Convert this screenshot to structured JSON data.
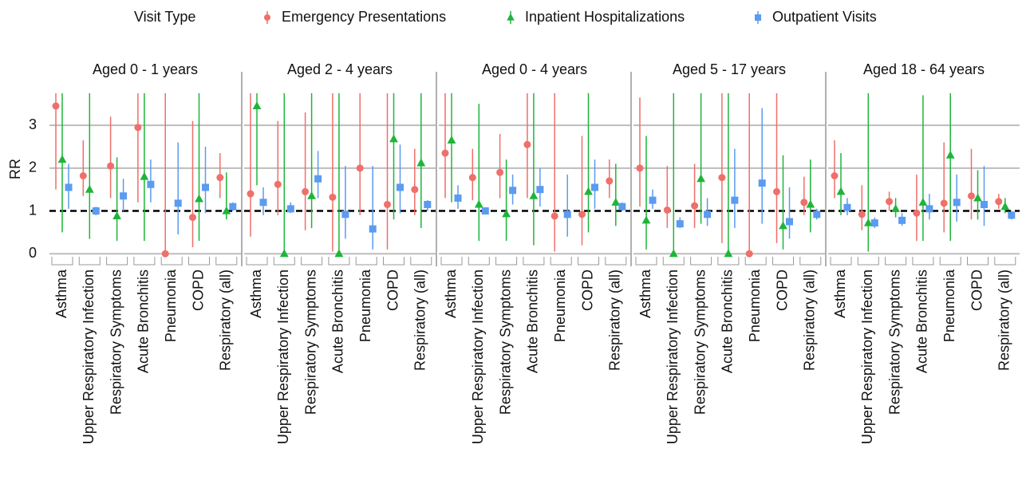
{
  "chart_data": {
    "type": "errorbar",
    "legend_title": "Visit Type",
    "ylabel": "RR",
    "ylim": [
      -0.07,
      4.25
    ],
    "yticks": [
      0,
      1,
      2,
      3
    ],
    "grid": true,
    "reference_line": 1,
    "legend": [
      {
        "name": "Emergency Presentations",
        "color": "#ef6f6a",
        "marker": "circle"
      },
      {
        "name": "Inpatient Hospitalizations",
        "color": "#1eb53a",
        "marker": "triangle"
      },
      {
        "name": "Outpatient Visits",
        "color": "#5b9bf0",
        "marker": "square"
      }
    ],
    "categories": [
      "Asthma",
      "Upper Respiratory Infection",
      "Respiratory Symptoms",
      "Acute Bronchitis",
      "Pneumonia",
      "COPD",
      "Respiratory (all)"
    ],
    "panels": [
      {
        "title": "Aged 0 - 1 years",
        "series": [
          {
            "values": [
              3.45,
              1.82,
              2.05,
              2.95,
              0,
              0.85,
              1.78
            ],
            "lower": [
              1.5,
              1.35,
              1.3,
              1.2,
              0,
              0.15,
              1.3
            ],
            "upper": [
              3.75,
              2.65,
              3.2,
              3.75,
              3.75,
              3.1,
              2.35
            ]
          },
          {
            "values": [
              2.2,
              1.5,
              0.88,
              1.8,
              null,
              1.28,
              1.0
            ],
            "lower": [
              0.5,
              0.35,
              0.3,
              0.3,
              null,
              0.3,
              0.8
            ],
            "upper": [
              3.75,
              3.75,
              2.25,
              3.75,
              null,
              3.75,
              1.9
            ]
          },
          {
            "values": [
              1.55,
              1.0,
              1.35,
              1.62,
              1.18,
              1.55,
              1.1
            ],
            "lower": [
              1.05,
              0.9,
              1.0,
              1.2,
              0.45,
              0.95,
              1.0
            ],
            "upper": [
              2.1,
              1.1,
              1.75,
              2.2,
              2.6,
              2.5,
              1.2
            ]
          }
        ]
      },
      {
        "title": "Aged 2 - 4 years",
        "series": [
          {
            "values": [
              1.4,
              1.62,
              1.45,
              1.32,
              2.0,
              1.15,
              1.5
            ],
            "lower": [
              0.4,
              0.9,
              0.55,
              0.05,
              0.9,
              0.1,
              0.9
            ],
            "upper": [
              3.75,
              3.1,
              3.3,
              3.75,
              3.75,
              3.75,
              2.45
            ]
          },
          {
            "values": [
              3.45,
              0,
              1.35,
              0,
              null,
              2.68,
              2.12
            ],
            "lower": [
              1.6,
              0,
              0.6,
              0,
              null,
              0.8,
              0.6
            ],
            "upper": [
              3.75,
              3.75,
              3.75,
              3.75,
              null,
              3.75,
              3.75
            ]
          },
          {
            "values": [
              1.2,
              1.05,
              1.75,
              0.92,
              0.58,
              1.55,
              1.15
            ],
            "lower": [
              0.9,
              0.95,
              1.3,
              0.35,
              0.1,
              0.95,
              1.0
            ],
            "upper": [
              1.55,
              1.2,
              2.4,
              2.05,
              2.05,
              2.55,
              1.25
            ]
          }
        ]
      },
      {
        "title": "Aged 0 - 4 years",
        "series": [
          {
            "values": [
              2.35,
              1.78,
              1.9,
              2.55,
              0.88,
              0.92,
              1.7
            ],
            "lower": [
              1.3,
              1.25,
              1.3,
              1.3,
              0.05,
              0.2,
              1.3
            ],
            "upper": [
              3.75,
              2.45,
              2.8,
              3.75,
              3.75,
              2.75,
              2.2
            ]
          },
          {
            "values": [
              2.65,
              1.15,
              0.93,
              1.35,
              null,
              1.45,
              1.2
            ],
            "lower": [
              1.2,
              0.3,
              0.3,
              0.2,
              null,
              0.5,
              0.65
            ],
            "upper": [
              3.75,
              3.5,
              2.2,
              3.75,
              null,
              3.75,
              2.1
            ]
          },
          {
            "values": [
              1.3,
              1.0,
              1.48,
              1.5,
              0.92,
              1.55,
              1.1
            ],
            "lower": [
              1.05,
              0.95,
              1.15,
              1.1,
              0.4,
              1.05,
              1.0
            ],
            "upper": [
              1.6,
              1.05,
              1.85,
              2.0,
              1.85,
              2.2,
              1.2
            ]
          }
        ]
      },
      {
        "title": "Aged 5 - 17 years",
        "series": [
          {
            "values": [
              2.0,
              1.02,
              1.12,
              1.78,
              0,
              1.45,
              1.2
            ],
            "lower": [
              1.1,
              0.6,
              0.6,
              0.25,
              0,
              0.25,
              0.9
            ],
            "upper": [
              3.65,
              2.05,
              2.1,
              3.75,
              3.75,
              3.75,
              1.8
            ]
          },
          {
            "values": [
              0.78,
              0,
              1.75,
              0,
              null,
              0.65,
              1.15
            ],
            "lower": [
              0.1,
              0,
              0.7,
              0,
              null,
              0.1,
              0.5
            ],
            "upper": [
              2.75,
              3.75,
              3.75,
              3.75,
              null,
              2.3,
              2.2
            ]
          },
          {
            "values": [
              1.25,
              0.7,
              0.92,
              1.25,
              1.65,
              0.75,
              0.92
            ],
            "lower": [
              1.05,
              0.6,
              0.65,
              0.6,
              0.7,
              0.35,
              0.8
            ],
            "upper": [
              1.5,
              0.85,
              1.3,
              2.45,
              3.4,
              1.55,
              1.05
            ]
          }
        ]
      },
      {
        "title": "Aged 18 - 64 years",
        "series": [
          {
            "values": [
              1.82,
              0.92,
              1.22,
              0.95,
              1.18,
              1.35,
              1.22
            ],
            "lower": [
              1.3,
              0.55,
              1.0,
              0.3,
              0.5,
              0.8,
              1.05
            ],
            "upper": [
              2.65,
              1.6,
              1.45,
              1.85,
              2.6,
              2.45,
              1.4
            ]
          },
          {
            "values": [
              1.45,
              0.72,
              1.05,
              1.2,
              2.3,
              1.3,
              1.1
            ],
            "lower": [
              0.9,
              0.05,
              0.85,
              0.3,
              0.3,
              0.8,
              0.95
            ],
            "upper": [
              2.35,
              3.75,
              1.3,
              3.7,
              3.75,
              1.95,
              1.3
            ]
          },
          {
            "values": [
              1.08,
              0.72,
              0.78,
              1.05,
              1.2,
              1.15,
              0.9
            ],
            "lower": [
              0.9,
              0.6,
              0.65,
              0.8,
              0.75,
              0.65,
              0.8
            ],
            "upper": [
              1.3,
              0.85,
              0.95,
              1.4,
              1.85,
              2.05,
              1.0
            ]
          }
        ]
      }
    ]
  }
}
